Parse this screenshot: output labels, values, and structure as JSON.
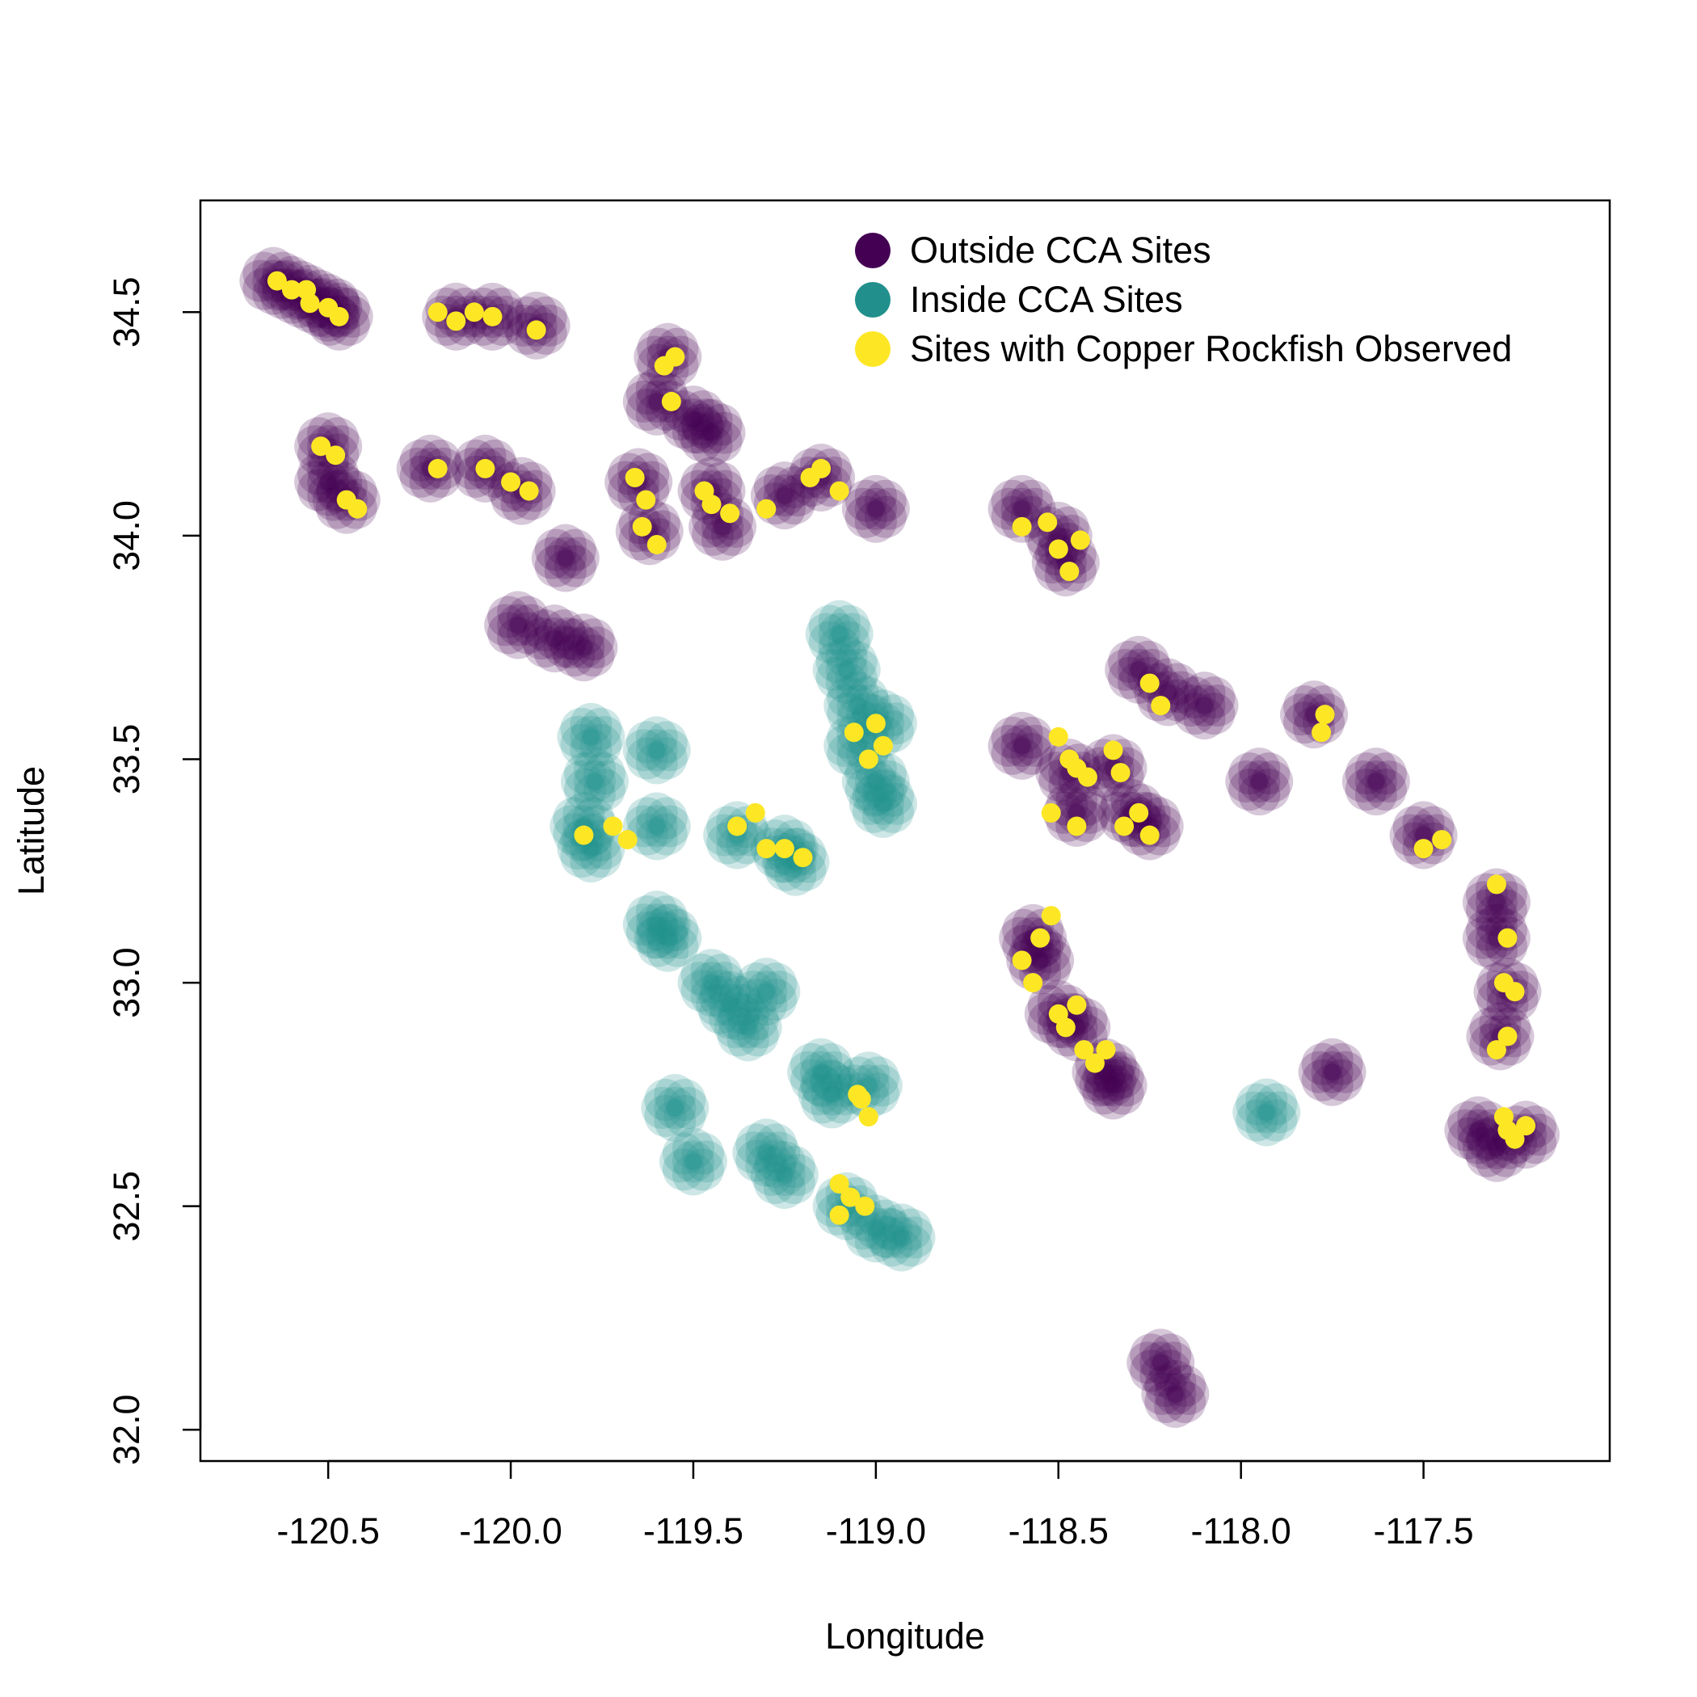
{
  "chart_data": {
    "type": "scatter",
    "title": "",
    "xlabel": "Longitude",
    "ylabel": "Latitude",
    "xlim": [
      -120.85,
      -116.99
    ],
    "ylim": [
      31.93,
      34.75
    ],
    "x_ticks": [
      -120.5,
      -120.0,
      -119.5,
      -119.0,
      -118.5,
      -118.0,
      -117.5
    ],
    "x_tick_labels": [
      "-120.5",
      "-120.0",
      "-119.5",
      "-119.0",
      "-118.5",
      "-118.0",
      "-117.5"
    ],
    "y_ticks": [
      32.0,
      32.5,
      33.0,
      33.5,
      34.0,
      34.5
    ],
    "y_tick_labels": [
      "32.0",
      "32.5",
      "33.0",
      "33.5",
      "34.0",
      "34.5"
    ],
    "grid": false,
    "legend_position": "top-right",
    "series": [
      {
        "name": "Outside CCA Sites",
        "color": "#440154",
        "marker": "circle-translucent",
        "points": [
          [
            -120.65,
            34.57
          ],
          [
            -120.6,
            34.55
          ],
          [
            -120.55,
            34.53
          ],
          [
            -120.5,
            34.51
          ],
          [
            -120.47,
            34.49
          ],
          [
            -120.15,
            34.49
          ],
          [
            -120.05,
            34.49
          ],
          [
            -119.93,
            34.47
          ],
          [
            -119.57,
            34.4
          ],
          [
            -119.6,
            34.3
          ],
          [
            -119.5,
            34.26
          ],
          [
            -119.45,
            34.23
          ],
          [
            -120.5,
            34.2
          ],
          [
            -120.5,
            34.12
          ],
          [
            -120.45,
            34.08
          ],
          [
            -120.22,
            34.15
          ],
          [
            -120.07,
            34.15
          ],
          [
            -119.97,
            34.1
          ],
          [
            -119.65,
            34.12
          ],
          [
            -119.62,
            34.01
          ],
          [
            -119.45,
            34.1
          ],
          [
            -119.42,
            34.02
          ],
          [
            -119.25,
            34.09
          ],
          [
            -119.15,
            34.13
          ],
          [
            -119.0,
            34.06
          ],
          [
            -118.6,
            34.06
          ],
          [
            -118.5,
            34.0
          ],
          [
            -118.48,
            33.94
          ],
          [
            -119.85,
            33.95
          ],
          [
            -119.98,
            33.8
          ],
          [
            -119.88,
            33.77
          ],
          [
            -119.8,
            33.75
          ],
          [
            -118.28,
            33.7
          ],
          [
            -118.2,
            33.65
          ],
          [
            -118.1,
            33.62
          ],
          [
            -117.8,
            33.6
          ],
          [
            -117.95,
            33.45
          ],
          [
            -117.63,
            33.45
          ],
          [
            -117.5,
            33.33
          ],
          [
            -118.6,
            33.53
          ],
          [
            -118.47,
            33.47
          ],
          [
            -118.45,
            33.38
          ],
          [
            -118.35,
            33.48
          ],
          [
            -118.3,
            33.38
          ],
          [
            -118.25,
            33.35
          ],
          [
            -118.57,
            33.1
          ],
          [
            -118.55,
            33.05
          ],
          [
            -118.5,
            32.93
          ],
          [
            -118.45,
            32.9
          ],
          [
            -118.37,
            32.8
          ],
          [
            -118.35,
            32.77
          ],
          [
            -117.75,
            32.8
          ],
          [
            -117.3,
            33.18
          ],
          [
            -117.3,
            33.1
          ],
          [
            -117.27,
            32.98
          ],
          [
            -117.29,
            32.88
          ],
          [
            -117.35,
            32.67
          ],
          [
            -117.3,
            32.63
          ],
          [
            -117.22,
            32.66
          ],
          [
            -118.22,
            32.15
          ],
          [
            -118.18,
            32.08
          ]
        ]
      },
      {
        "name": "Inside CCA Sites",
        "color": "#21908C",
        "marker": "circle-translucent",
        "points": [
          [
            -119.1,
            33.78
          ],
          [
            -119.08,
            33.7
          ],
          [
            -119.05,
            33.62
          ],
          [
            -118.98,
            33.58
          ],
          [
            -119.05,
            33.53
          ],
          [
            -119.0,
            33.45
          ],
          [
            -118.98,
            33.4
          ],
          [
            -119.78,
            33.55
          ],
          [
            -119.77,
            33.45
          ],
          [
            -119.8,
            33.35
          ],
          [
            -119.78,
            33.3
          ],
          [
            -119.6,
            33.52
          ],
          [
            -119.6,
            33.35
          ],
          [
            -119.38,
            33.33
          ],
          [
            -119.25,
            33.3
          ],
          [
            -119.22,
            33.27
          ],
          [
            -119.6,
            33.13
          ],
          [
            -119.57,
            33.1
          ],
          [
            -119.45,
            33.0
          ],
          [
            -119.4,
            32.95
          ],
          [
            -119.35,
            32.9
          ],
          [
            -119.3,
            32.98
          ],
          [
            -119.15,
            32.8
          ],
          [
            -119.12,
            32.75
          ],
          [
            -119.02,
            32.77
          ],
          [
            -119.55,
            32.72
          ],
          [
            -119.5,
            32.6
          ],
          [
            -119.3,
            32.62
          ],
          [
            -119.25,
            32.57
          ],
          [
            -119.08,
            32.5
          ],
          [
            -119.0,
            32.45
          ],
          [
            -118.93,
            32.43
          ],
          [
            -117.93,
            32.71
          ]
        ]
      },
      {
        "name": "Sites with Copper Rockfish Observed",
        "color": "#FDE725",
        "marker": "circle-solid",
        "points": [
          [
            -120.64,
            34.57
          ],
          [
            -120.6,
            34.55
          ],
          [
            -120.56,
            34.55
          ],
          [
            -120.55,
            34.52
          ],
          [
            -120.5,
            34.51
          ],
          [
            -120.47,
            34.49
          ],
          [
            -120.2,
            34.5
          ],
          [
            -120.15,
            34.48
          ],
          [
            -120.1,
            34.5
          ],
          [
            -120.05,
            34.49
          ],
          [
            -119.93,
            34.46
          ],
          [
            -119.58,
            34.38
          ],
          [
            -119.55,
            34.4
          ],
          [
            -119.56,
            34.3
          ],
          [
            -120.52,
            34.2
          ],
          [
            -120.48,
            34.18
          ],
          [
            -120.45,
            34.08
          ],
          [
            -120.42,
            34.06
          ],
          [
            -120.2,
            34.15
          ],
          [
            -120.07,
            34.15
          ],
          [
            -120.0,
            34.12
          ],
          [
            -119.95,
            34.1
          ],
          [
            -119.66,
            34.13
          ],
          [
            -119.63,
            34.08
          ],
          [
            -119.64,
            34.02
          ],
          [
            -119.6,
            33.98
          ],
          [
            -119.47,
            34.1
          ],
          [
            -119.45,
            34.07
          ],
          [
            -119.4,
            34.05
          ],
          [
            -119.3,
            34.06
          ],
          [
            -119.18,
            34.13
          ],
          [
            -119.1,
            34.1
          ],
          [
            -119.15,
            34.15
          ],
          [
            -118.6,
            34.02
          ],
          [
            -118.53,
            34.03
          ],
          [
            -118.5,
            33.97
          ],
          [
            -118.47,
            33.92
          ],
          [
            -118.44,
            33.99
          ],
          [
            -118.25,
            33.67
          ],
          [
            -118.22,
            33.62
          ],
          [
            -117.78,
            33.56
          ],
          [
            -117.77,
            33.6
          ],
          [
            -118.5,
            33.55
          ],
          [
            -118.47,
            33.5
          ],
          [
            -118.45,
            33.48
          ],
          [
            -118.52,
            33.38
          ],
          [
            -118.45,
            33.35
          ],
          [
            -118.42,
            33.46
          ],
          [
            -118.35,
            33.52
          ],
          [
            -118.33,
            33.47
          ],
          [
            -118.32,
            33.35
          ],
          [
            -118.28,
            33.38
          ],
          [
            -118.25,
            33.33
          ],
          [
            -119.8,
            33.33
          ],
          [
            -119.72,
            33.35
          ],
          [
            -119.68,
            33.32
          ],
          [
            -119.38,
            33.35
          ],
          [
            -119.33,
            33.38
          ],
          [
            -119.3,
            33.3
          ],
          [
            -119.25,
            33.3
          ],
          [
            -119.2,
            33.28
          ],
          [
            -119.06,
            33.56
          ],
          [
            -119.0,
            33.58
          ],
          [
            -119.02,
            33.5
          ],
          [
            -118.98,
            33.53
          ],
          [
            -118.6,
            33.05
          ],
          [
            -118.55,
            33.1
          ],
          [
            -118.52,
            33.15
          ],
          [
            -118.57,
            33.0
          ],
          [
            -118.5,
            32.93
          ],
          [
            -118.48,
            32.9
          ],
          [
            -118.45,
            32.95
          ],
          [
            -118.43,
            32.85
          ],
          [
            -118.37,
            32.85
          ],
          [
            -118.4,
            32.82
          ],
          [
            -119.04,
            32.74
          ],
          [
            -119.02,
            32.7
          ],
          [
            -119.05,
            32.75
          ],
          [
            -119.1,
            32.55
          ],
          [
            -119.07,
            32.52
          ],
          [
            -119.03,
            32.5
          ],
          [
            -119.1,
            32.48
          ],
          [
            -117.3,
            33.22
          ],
          [
            -117.27,
            33.1
          ],
          [
            -117.28,
            33.0
          ],
          [
            -117.25,
            32.98
          ],
          [
            -117.3,
            32.85
          ],
          [
            -117.27,
            32.88
          ],
          [
            -117.27,
            32.67
          ],
          [
            -117.25,
            32.65
          ],
          [
            -117.22,
            32.68
          ],
          [
            -117.28,
            32.7
          ],
          [
            -117.5,
            33.3
          ],
          [
            -117.45,
            33.32
          ]
        ]
      }
    ]
  }
}
